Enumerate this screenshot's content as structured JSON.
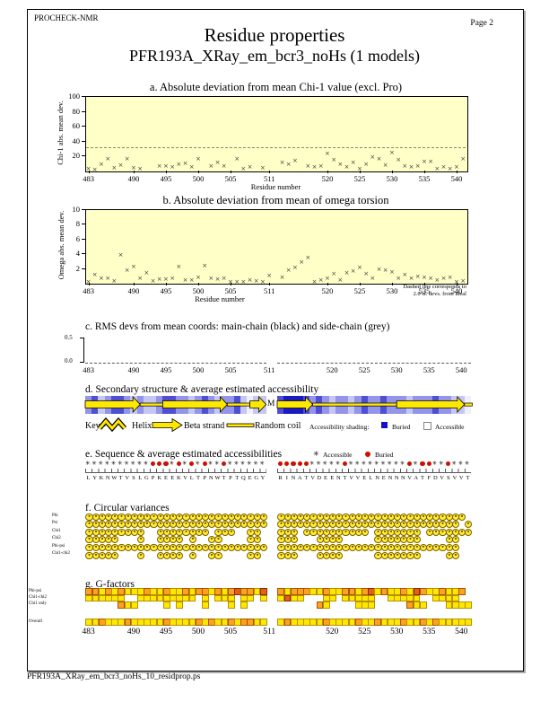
{
  "page": {
    "app_name": "PROCHECK-NMR",
    "page_label": "Page  2",
    "title": "Residue properties",
    "subtitle": "PFR193A_XRay_em_bcr3_noHs (1 models)",
    "footer_filename": "PFR193A_XRay_em_bcr3_noHs_10_residprop.ps"
  },
  "axis": {
    "xlabel": "Residue number",
    "continuous_ticks": [
      483,
      490,
      495,
      500,
      505,
      511,
      520,
      525,
      530,
      535,
      540
    ],
    "seg1_ticks": [
      483,
      490,
      495,
      500,
      505,
      511
    ],
    "seg2_ticks": [
      520,
      525,
      530,
      535,
      540
    ],
    "seg1_start": 483,
    "seg1_count": 28,
    "seg2_start": 512,
    "seg2_count": 30
  },
  "chart_data": [
    {
      "id": "a",
      "type": "scatter",
      "title": "a. Absolute deviation from mean Chi-1 value (excl. Pro)",
      "ylabel": "Chi-1 abs. mean dev.",
      "xlabel": "Residue number",
      "ylim": [
        0,
        100
      ],
      "yticks": [
        20,
        40,
        60,
        80,
        100
      ],
      "xlim": [
        483,
        541
      ],
      "dashed_line_y": 31,
      "marker": "x",
      "points": [
        [
          483,
          2
        ],
        [
          484,
          1
        ],
        [
          485,
          8
        ],
        [
          486,
          15
        ],
        [
          487,
          3
        ],
        [
          488,
          7
        ],
        [
          489,
          15
        ],
        [
          490,
          3
        ],
        [
          491,
          2
        ],
        [
          494,
          5
        ],
        [
          495,
          6
        ],
        [
          496,
          4
        ],
        [
          497,
          8
        ],
        [
          498,
          9
        ],
        [
          499,
          4
        ],
        [
          500,
          15
        ],
        [
          502,
          6
        ],
        [
          503,
          10
        ],
        [
          504,
          6
        ],
        [
          506,
          15
        ],
        [
          507,
          2
        ],
        [
          508,
          4
        ],
        [
          510,
          3
        ],
        [
          513,
          10
        ],
        [
          514,
          8
        ],
        [
          515,
          13
        ],
        [
          517,
          6
        ],
        [
          518,
          4
        ],
        [
          519,
          5
        ],
        [
          520,
          22
        ],
        [
          521,
          14
        ],
        [
          522,
          8
        ],
        [
          523,
          4
        ],
        [
          524,
          10
        ],
        [
          525,
          2
        ],
        [
          526,
          8
        ],
        [
          527,
          18
        ],
        [
          528,
          15
        ],
        [
          529,
          7
        ],
        [
          530,
          23
        ],
        [
          531,
          14
        ],
        [
          532,
          5
        ],
        [
          533,
          4
        ],
        [
          534,
          5
        ],
        [
          535,
          12
        ],
        [
          536,
          11
        ],
        [
          537,
          2
        ],
        [
          538,
          4
        ],
        [
          539,
          2
        ],
        [
          540,
          4
        ],
        [
          541,
          15
        ]
      ]
    },
    {
      "id": "b",
      "type": "scatter",
      "title": "b. Absolute deviation from mean of omega torsion",
      "ylabel": "Omega abs. mean dev.",
      "xlabel": "Residue number",
      "ylim": [
        0,
        10
      ],
      "yticks": [
        2,
        4,
        6,
        8,
        10
      ],
      "xlim": [
        483,
        541
      ],
      "marker": "x",
      "note_lines": [
        "Dashed line corresponds to",
        "2.0 st. devs. from ideal"
      ],
      "points": [
        [
          483,
          0.1
        ],
        [
          484,
          1.0
        ],
        [
          485,
          0.6
        ],
        [
          486,
          0.5
        ],
        [
          487,
          0.2
        ],
        [
          488,
          3.7
        ],
        [
          489,
          1.7
        ],
        [
          490,
          2.1
        ],
        [
          491,
          0.5
        ],
        [
          492,
          1.3
        ],
        [
          493,
          0.2
        ],
        [
          494,
          0.4
        ],
        [
          495,
          0.4
        ],
        [
          496,
          0.6
        ],
        [
          497,
          2.1
        ],
        [
          498,
          0.3
        ],
        [
          499,
          0.3
        ],
        [
          500,
          0.7
        ],
        [
          501,
          2.3
        ],
        [
          502,
          0.5
        ],
        [
          503,
          0.4
        ],
        [
          504,
          0.5
        ],
        [
          505,
          0.1
        ],
        [
          506,
          0.1
        ],
        [
          507,
          0.1
        ],
        [
          508,
          0.3
        ],
        [
          509,
          0.2
        ],
        [
          510,
          0.1
        ],
        [
          511,
          0.9
        ],
        [
          513,
          0.7
        ],
        [
          514,
          1.6
        ],
        [
          515,
          2.0
        ],
        [
          516,
          2.7
        ],
        [
          517,
          3.3
        ],
        [
          518,
          0.1
        ],
        [
          519,
          0.3
        ],
        [
          520,
          0.5
        ],
        [
          521,
          1.1
        ],
        [
          522,
          0.3
        ],
        [
          523,
          1.3
        ],
        [
          524,
          1.5
        ],
        [
          525,
          2.0
        ],
        [
          526,
          1.1
        ],
        [
          527,
          0.5
        ],
        [
          528,
          1.8
        ],
        [
          529,
          1.7
        ],
        [
          530,
          1.4
        ],
        [
          531,
          0.6
        ],
        [
          532,
          1.0
        ],
        [
          533,
          0.6
        ],
        [
          534,
          0.8
        ],
        [
          535,
          0.7
        ],
        [
          536,
          0.5
        ],
        [
          537,
          0.3
        ],
        [
          538,
          0.6
        ],
        [
          539,
          0.7
        ],
        [
          540,
          0.1
        ],
        [
          541,
          0.2
        ]
      ]
    },
    {
      "id": "c",
      "type": "line",
      "title": "c. RMS devs from mean coords: main-chain (black) and side-chain (grey)",
      "ylim": [
        0,
        0.5
      ],
      "ytick_labels": [
        "0.0",
        "0.5"
      ],
      "series": [
        {
          "name": "main-chain",
          "color": "black",
          "values_constant": 0
        },
        {
          "name": "side-chain",
          "color": "grey",
          "values_constant": 0
        }
      ]
    }
  ],
  "sections": {
    "d": {
      "title": "d. Secondary structure & average estimated accessibility",
      "chain_break_label": "M",
      "key_label": "Key:-",
      "key_items": [
        "Helix",
        "Beta strand",
        "Random coil"
      ],
      "access_label": "Accessibility shading:",
      "access_items": [
        "Buried",
        "Accessible"
      ],
      "shades_seg1": [
        2,
        3,
        1,
        2,
        3,
        3,
        2,
        1,
        2,
        1,
        1,
        2,
        3,
        3,
        2,
        2,
        1,
        2,
        3,
        2,
        1,
        2,
        2,
        3,
        1,
        0,
        1,
        1
      ],
      "shades_seg2": [
        3,
        4,
        4,
        4,
        3,
        2,
        3,
        2,
        1,
        2,
        2,
        1,
        2,
        3,
        2,
        2,
        3,
        2,
        2,
        2,
        1,
        2,
        2,
        2,
        3,
        2,
        2,
        1,
        1,
        0
      ],
      "elements_seg1": [
        {
          "type": "strand",
          "from": 0,
          "to": 8.5
        },
        {
          "type": "coil",
          "from": 8.5,
          "to": 12
        },
        {
          "type": "strand",
          "from": 12,
          "to": 22
        },
        {
          "type": "coil",
          "from": 22,
          "to": 25.5
        },
        {
          "type": "strand",
          "from": 25.5,
          "to": 28
        }
      ],
      "elements_seg2": [
        {
          "type": "strand",
          "from": 0,
          "to": 5.5
        },
        {
          "type": "coil",
          "from": 5.5,
          "to": 18.5
        },
        {
          "type": "strand",
          "from": 18.5,
          "to": 29
        },
        {
          "type": "coil",
          "from": 29,
          "to": 30.2
        }
      ]
    },
    "e": {
      "title": "e. Sequence & average estimated accessibilities",
      "legend": [
        {
          "symbol": "asterisk",
          "label": "Accessible"
        },
        {
          "symbol": "dot",
          "label": "Buried"
        }
      ],
      "symbols_seg1": "AAAAAAAAAABBBABABABAABAAAAAA",
      "symbols_seg2": "BBBBBAAAAABAAAAAAAAABABBAABAAA",
      "seq_seg1": "LYKNWTVSLGPKEEKVLTPNWTPTQEGY",
      "seq_seg2": "RINATVDEENTVVELNENNNVATFDVSVVT"
    },
    "f": {
      "title": "f. Circular variances",
      "rows": [
        {
          "label": "Phi",
          "seg1": "1111111111111111111111111111",
          "seg2": "111111111111111111111111111110"
        },
        {
          "label": "Psi",
          "seg1": "1111111111111111111111111111",
          "seg2": "111111111111111111111111111101"
        },
        {
          "label": "Chi1",
          "seg1": "1111111110011111111011100110",
          "seg2": "111011111111110111111101111111"
        },
        {
          "label": "Chi2",
          "seg1": "1111100010011110100110000110",
          "seg2": "111000111100000111111100001100"
        },
        {
          "label": "Phi-psi",
          "seg1": "1111111111111111111111111111",
          "seg2": "111111111111111111111111111100"
        },
        {
          "label": "Chi1-chi2",
          "seg1": "1111100010011110100110000110",
          "seg2": "111000111100000111111100001100"
        }
      ]
    },
    "g": {
      "title": "g. G-factors",
      "rows": [
        {
          "label": "Phi-psi",
          "seg1": "ooyoyoyyyoyyoyyoyooyoyorooyr",
          "seg2": "oyoooyyoyyooyoryoyyoyroyyoyyo."
        },
        {
          "label": "Chi1-chi2",
          "seg1": "yyyyyy..yyyyyyyyy.y.yyy.yy.y",
          "seg2": "yryy...yy.yyyyy..yyyyy..yyyy.."
        },
        {
          "label": "Chi1 only",
          "seg1": ".....oyy....y.y...y...y.y...",
          "seg2": "......oy....yyy.....oyy...yyyy"
        }
      ],
      "overall": {
        "label": "Overall",
        "seg1": "yyoyyyoyyyyyoyyyyoyoyyoyooyy",
        "seg2": "yoyyyyyoyyyyoyyoyyyoyyoyoyyyyy"
      }
    }
  },
  "colors": {
    "plot_bg": "#ffffc8",
    "marker": "#3a3a3a",
    "strand_yellow": "#ffe800",
    "buried_key_blue": "#1111cc",
    "buried_symbol_red": "#cc1100",
    "access_blues": [
      "#f0f0fc",
      "#c6c6f4",
      "#9494e8",
      "#4f4fd4",
      "#1a1ac0"
    ],
    "circle_yellow": "#ffee30",
    "gfactor": {
      "y": "#ffe800",
      "o": "#ffa020",
      "r": "#e85d10"
    }
  }
}
